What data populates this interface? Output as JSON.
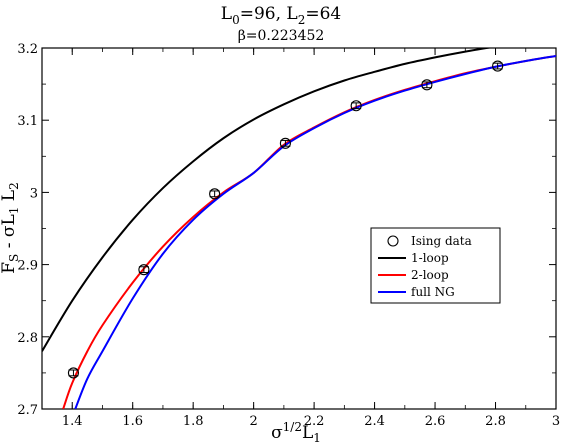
{
  "chart_data": {
    "type": "line",
    "title_main": "L",
    "title_main_sub": "0",
    "title_main_mid": "=96,  L",
    "title_main_sub2": "2",
    "title_main_end": "=64",
    "subtitle": "β=0.223452",
    "xlabel": {
      "base": "σ",
      "sup": "1/2",
      "base2": "L",
      "sub": "1"
    },
    "ylabel": {
      "F": "F",
      "sub_s": "S",
      "mid": " - σL",
      "sub_1": "1",
      "L": " L",
      "sub_2": "2"
    },
    "xlim": [
      1.3,
      3.0
    ],
    "ylim": [
      2.7,
      3.2
    ],
    "xticks": [
      1.4,
      1.6,
      1.8,
      2.0,
      2.2,
      2.4,
      2.6,
      2.8,
      3.0
    ],
    "xtick_labels": [
      "1.4",
      "1.6",
      "1.8",
      "2",
      "2.2",
      "2.4",
      "2.6",
      "2.8",
      "3"
    ],
    "yticks": [
      2.7,
      2.8,
      2.9,
      3.0,
      3.1,
      3.2
    ],
    "ytick_labels": [
      "2.7",
      "2.8",
      "2.9",
      "3",
      "3.1",
      "3.2"
    ],
    "legend_position": "center-right",
    "series": [
      {
        "name": "Ising data",
        "kind": "scatter",
        "color": "#000000",
        "x": [
          1.404,
          1.637,
          1.871,
          2.105,
          2.339,
          2.573,
          2.807
        ],
        "y": [
          2.75,
          2.893,
          2.998,
          3.068,
          3.12,
          3.149,
          3.175
        ],
        "yerr": [
          0.004,
          0.004,
          0.004,
          0.004,
          0.004,
          0.004,
          0.004
        ]
      },
      {
        "name": "1-loop",
        "kind": "line",
        "color": "#000000",
        "x": [
          1.3,
          1.4,
          1.5,
          1.6,
          1.7,
          1.8,
          1.9,
          2.0,
          2.1,
          2.2,
          2.3,
          2.4,
          2.5,
          2.6,
          2.7,
          2.8
        ],
        "y": [
          2.78,
          2.85,
          2.91,
          2.962,
          3.006,
          3.043,
          3.075,
          3.101,
          3.122,
          3.14,
          3.155,
          3.167,
          3.178,
          3.187,
          3.195,
          3.202
        ]
      },
      {
        "name": "2-loop",
        "kind": "line",
        "color": "#ff0000",
        "x": [
          1.37,
          1.4,
          1.45,
          1.5,
          1.6,
          1.7,
          1.8,
          1.9,
          2.0,
          2.1,
          2.2,
          2.3,
          2.4,
          2.5,
          2.6,
          2.7,
          2.8,
          2.9,
          3.0
        ],
        "y": [
          2.7,
          2.736,
          2.78,
          2.816,
          2.875,
          2.925,
          2.966,
          3.0,
          3.027,
          3.066,
          3.09,
          3.111,
          3.128,
          3.142,
          3.154,
          3.165,
          3.174,
          3.182,
          3.189
        ]
      },
      {
        "name": "full NG",
        "kind": "line",
        "color": "#0000ff",
        "x": [
          1.41,
          1.45,
          1.5,
          1.6,
          1.7,
          1.8,
          1.9,
          2.0,
          2.1,
          2.2,
          2.3,
          2.4,
          2.5,
          2.6,
          2.7,
          2.8,
          2.9,
          3.0
        ],
        "y": [
          2.7,
          2.742,
          2.78,
          2.853,
          2.915,
          2.962,
          2.998,
          3.027,
          3.064,
          3.089,
          3.11,
          3.127,
          3.141,
          3.153,
          3.164,
          3.174,
          3.182,
          3.189
        ]
      }
    ]
  }
}
